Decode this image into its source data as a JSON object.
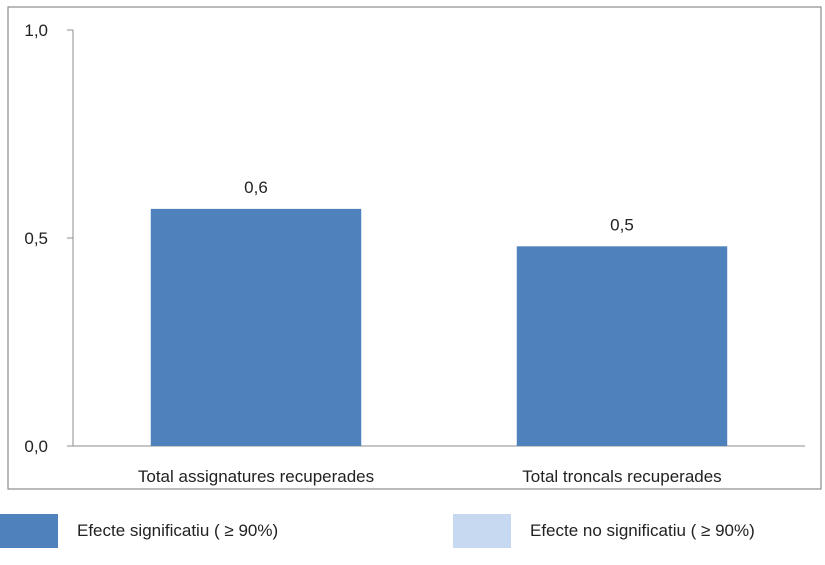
{
  "chart_data": {
    "type": "bar",
    "categories": [
      "Total assignatures recuperades",
      "Total troncals recuperades"
    ],
    "values": [
      0.57,
      0.48
    ],
    "data_labels": [
      "0,6",
      "0,5"
    ],
    "ylim": [
      0,
      1.0
    ],
    "yticks": [
      0.0,
      0.5,
      1.0
    ],
    "ytick_labels": [
      "0,0",
      "0,5",
      "1,0"
    ],
    "grid": false,
    "bar_color": "#4F81BD",
    "title": "",
    "xlabel": "",
    "ylabel": ""
  },
  "legend": {
    "placement": "bottom",
    "items": [
      {
        "label": "Efecte significatiu ( ≥ 90%)",
        "color": "#4F81BD"
      },
      {
        "label": "Efecte no significatiu ( ≥ 90%)",
        "color": "#C6D9F1"
      }
    ]
  }
}
